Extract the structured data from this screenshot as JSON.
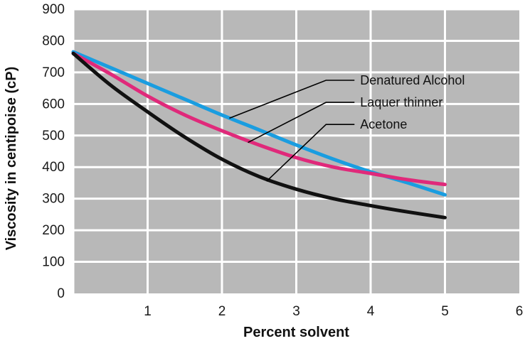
{
  "chart_data": {
    "type": "line",
    "title": "",
    "xlabel": "Percent solvent",
    "ylabel": "Viscosity in centipoise (cP)",
    "xlim": [
      0,
      6
    ],
    "ylim": [
      0,
      900
    ],
    "xticks": [
      1,
      2,
      3,
      4,
      5,
      6
    ],
    "yticks": [
      0,
      100,
      200,
      300,
      400,
      500,
      600,
      700,
      800,
      900
    ],
    "grid": true,
    "colors": {
      "plot_background": "#b8b8b8",
      "grid": "#ffffff",
      "annotation_line": "#000000"
    },
    "series": [
      {
        "name": "Denatured Alcohol",
        "color": "#1a9de0",
        "x": [
          0,
          0.5,
          1,
          1.5,
          2,
          2.5,
          3,
          3.5,
          4,
          4.5,
          5
        ],
        "y": [
          765,
          715,
          665,
          615,
          565,
          518,
          470,
          425,
          385,
          350,
          312
        ]
      },
      {
        "name": "Laquer thinner",
        "color": "#e0297a",
        "x": [
          0,
          0.5,
          1,
          1.5,
          2,
          2.5,
          3,
          3.5,
          4,
          4.5,
          5
        ],
        "y": [
          760,
          695,
          625,
          565,
          515,
          470,
          430,
          400,
          380,
          360,
          345
        ]
      },
      {
        "name": "Acetone",
        "color": "#111111",
        "x": [
          0,
          0.5,
          1,
          1.5,
          2,
          2.5,
          3,
          3.5,
          4,
          4.5,
          5
        ],
        "y": [
          760,
          660,
          575,
          495,
          425,
          370,
          330,
          300,
          278,
          258,
          240
        ]
      }
    ],
    "annotations": [
      {
        "series": "Denatured Alcohol",
        "label": "Denatured Alcohol",
        "point": [
          2.1,
          555
        ],
        "anchor": [
          3.4,
          675
        ]
      },
      {
        "series": "Laquer thinner",
        "label": "Laquer thinner",
        "point": [
          2.35,
          478
        ],
        "anchor": [
          3.4,
          605
        ]
      },
      {
        "series": "Acetone",
        "label": "Acetone",
        "point": [
          2.6,
          355
        ],
        "anchor": [
          3.4,
          535
        ]
      }
    ]
  }
}
